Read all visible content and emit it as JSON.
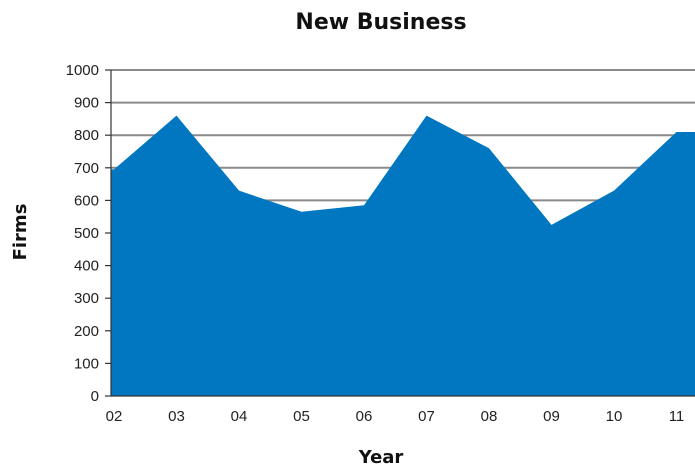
{
  "chart_data": {
    "type": "area",
    "title": "New Business",
    "xlabel": "Year",
    "ylabel": "Firms",
    "categories": [
      "02",
      "03",
      "04",
      "05",
      "06",
      "07",
      "08",
      "09",
      "10",
      "11"
    ],
    "series": [
      {
        "values": [
          695,
          860,
          630,
          565,
          585,
          860,
          760,
          525,
          630,
          810
        ]
      }
    ],
    "ylim": [
      0,
      1000
    ],
    "yticks": [
      "0",
      "100",
      "200",
      "300",
      "400",
      "500",
      "600",
      "700",
      "800",
      "900",
      "1000"
    ],
    "grid": true,
    "legend": "none",
    "colors": {
      "fill": "#0077c0",
      "grid": "#8a8a8a",
      "axis": "#333333"
    }
  }
}
